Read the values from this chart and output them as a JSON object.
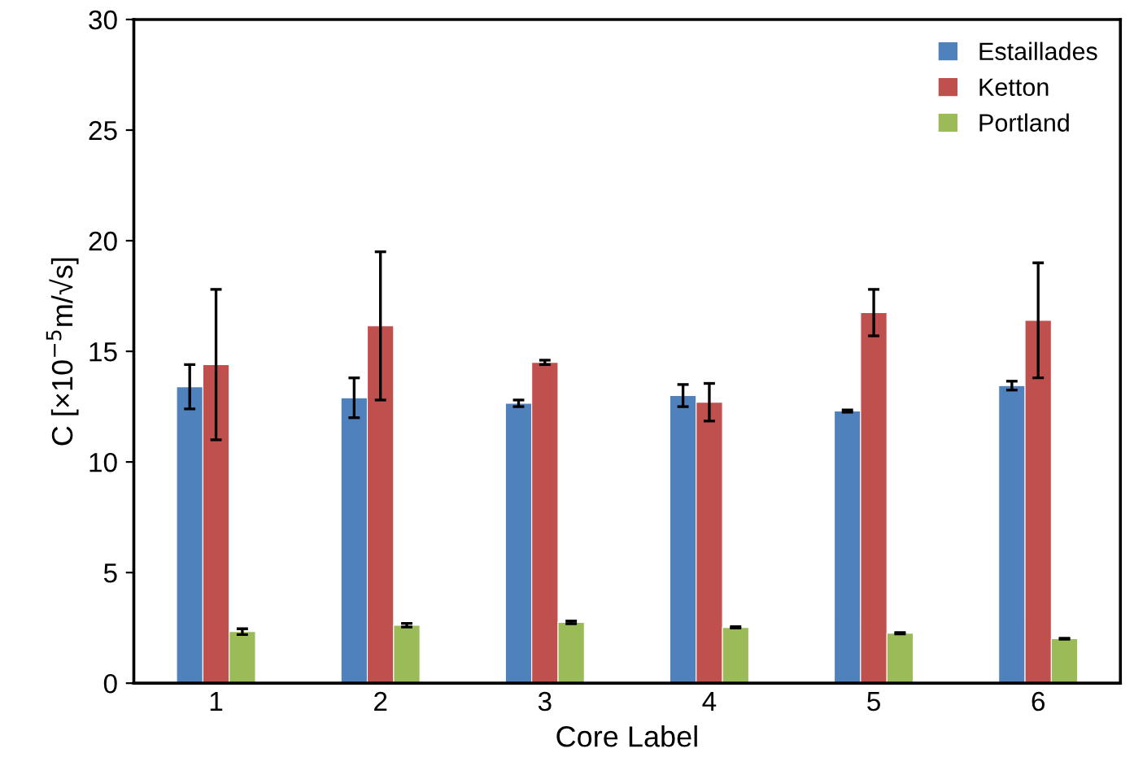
{
  "chart_data": {
    "type": "bar",
    "xlabel": "Core Label",
    "ylabel": "C [×10$^{−5}$m/√s]",
    "categories": [
      "1",
      "2",
      "3",
      "4",
      "5",
      "6"
    ],
    "series": [
      {
        "name": "Estaillades",
        "color": "#4f81bd",
        "values": [
          13.4,
          12.9,
          12.65,
          13.0,
          12.3,
          13.45
        ],
        "errors": [
          1.0,
          0.9,
          0.15,
          0.5,
          0.05,
          0.2
        ]
      },
      {
        "name": "Ketton",
        "color": "#c0504d",
        "values": [
          14.4,
          16.15,
          14.5,
          12.7,
          16.75,
          16.4
        ],
        "errors": [
          3.4,
          3.35,
          0.1,
          0.85,
          1.05,
          2.6
        ]
      },
      {
        "name": "Portland",
        "color": "#9bbb59",
        "values": [
          2.33,
          2.62,
          2.75,
          2.52,
          2.26,
          2.01
        ],
        "errors": [
          0.13,
          0.08,
          0.06,
          0.03,
          0.03,
          0.02
        ]
      }
    ],
    "ylim": [
      0,
      30
    ],
    "yticks": [
      0,
      5,
      10,
      15,
      20,
      25,
      30
    ],
    "grid": false,
    "legend": "top right"
  }
}
